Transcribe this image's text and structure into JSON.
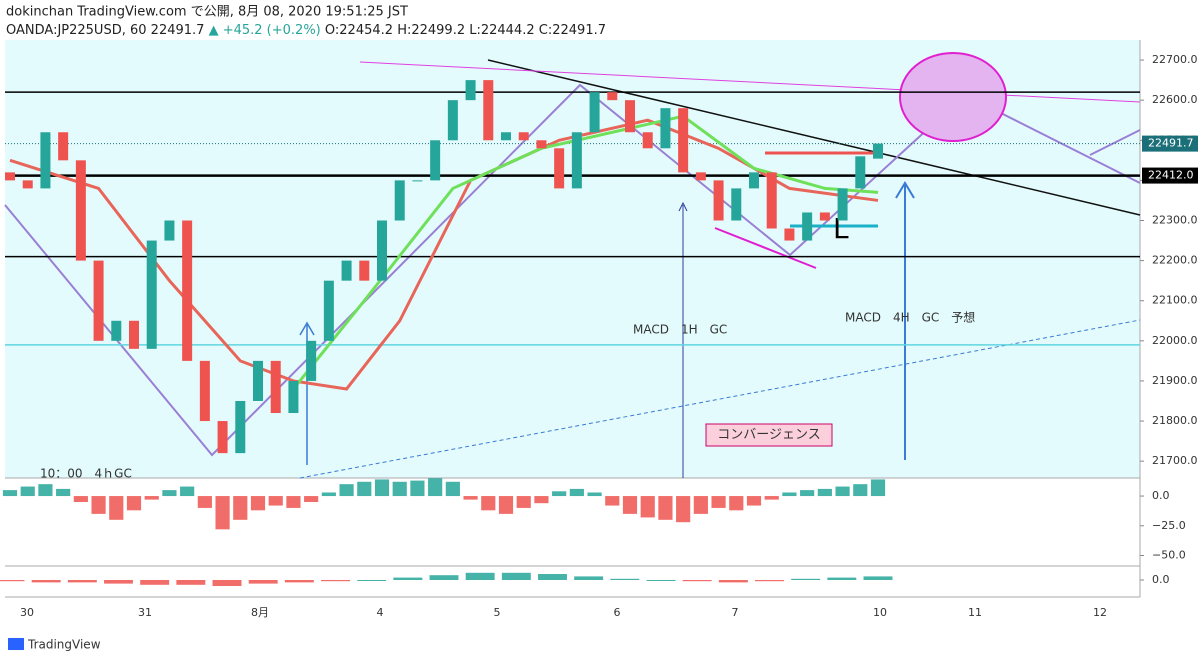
{
  "header": {
    "publisher": "dokinchan TradingView.com で公開, 8月 08, 2020 19:51:25 JST",
    "symbol": "OANDA:JP225USD, 60",
    "last": "22491.7",
    "change": "▲ +45.2 (+0.2%)",
    "open": "O:22454.2",
    "high": "H:22499.2",
    "low": "L:22444.2",
    "close": "C:22491.7"
  },
  "footer": {
    "brand": "TradingView"
  },
  "chart_data": {
    "type": "candlestick",
    "open": [
      22420,
      22400,
      22380,
      22520,
      22450,
      22200,
      22000,
      22050,
      21980,
      22250,
      22300,
      21950,
      21800,
      21720,
      21850,
      21950,
      21820,
      21900,
      22000,
      22150,
      22200,
      22150,
      22300,
      22400,
      22400,
      22500,
      22600,
      22650,
      22500,
      22520,
      22500,
      22480,
      22380,
      22520,
      22620,
      22600,
      22520,
      22480,
      22580,
      22420,
      22400,
      22300,
      22380,
      22420,
      22280,
      22250,
      22320,
      22300,
      22380,
      22454.2
    ],
    "close": [
      22400,
      22380,
      22520,
      22450,
      22200,
      22000,
      22050,
      21980,
      22250,
      22300,
      21950,
      21800,
      21720,
      21850,
      21950,
      21820,
      21900,
      22000,
      22150,
      22200,
      22150,
      22300,
      22400,
      22400,
      22500,
      22600,
      22650,
      22500,
      22520,
      22500,
      22480,
      22380,
      22520,
      22620,
      22600,
      22520,
      22480,
      22580,
      22420,
      22400,
      22300,
      22380,
      22420,
      22280,
      22250,
      22320,
      22300,
      22380,
      22460,
      22491.7
    ],
    "up_color": "#26a69a",
    "down_color": "#ef5350",
    "categories": [
      "30",
      "31",
      "8月",
      "4",
      "5",
      "6",
      "7",
      "10",
      "11",
      "12"
    ],
    "ylim": [
      21658,
      22750
    ],
    "yticks": [
      {
        "value": 22700,
        "label": "22700.0"
      },
      {
        "value": 22600,
        "label": "22600.0"
      },
      {
        "value": 22500,
        "label": "22500.0"
      },
      {
        "value": 22400,
        "label": "22400.0"
      },
      {
        "value": 22300,
        "label": "22300.0"
      },
      {
        "value": 22200,
        "label": "22200.0"
      },
      {
        "value": 22100,
        "label": "22100.0"
      },
      {
        "value": 22000,
        "label": "22000.0"
      },
      {
        "value": 21900,
        "label": "21900.0"
      },
      {
        "value": 21800,
        "label": "21800.0"
      },
      {
        "value": 21700,
        "label": "21700.0"
      }
    ],
    "moving_averages": [
      {
        "color": "#e8655a",
        "x": [
          0,
          5,
          9,
          13,
          16,
          19,
          22,
          26,
          31,
          36,
          40,
          44,
          49
        ],
        "values": [
          22450,
          22380,
          22150,
          21950,
          21900,
          21880,
          22050,
          22400,
          22500,
          22550,
          22480,
          22380,
          22350
        ]
      },
      {
        "color": "#6fe05a",
        "x": [
          16,
          20,
          25,
          30,
          35,
          38,
          42,
          46,
          49
        ],
        "values": [
          21880,
          22100,
          22380,
          22480,
          22530,
          22560,
          22430,
          22380,
          22370
        ]
      }
    ],
    "levels": [
      {
        "value": 22620,
        "color": "#000000"
      },
      {
        "value": 22412.0,
        "label": "22412.0",
        "color": "#000000"
      },
      {
        "value": 22210,
        "color": "#000000"
      },
      {
        "value": 21990,
        "color": "#5fd6e0"
      }
    ],
    "last_price": {
      "value": 22491.7,
      "label": "22491.7"
    },
    "annotations": [
      "MACD　1H　GC",
      "MACD　4H　GC　予想",
      "コンバージェンス",
      "L",
      "10：00　4ｈGC"
    ],
    "macd": {
      "ylim": [
        -58,
        13.5
      ],
      "yticks": [
        {
          "value": 0,
          "label": "0.0"
        },
        {
          "value": -25,
          "label": "−25.0"
        },
        {
          "value": -50,
          "label": "−50.0"
        }
      ],
      "values": [
        5,
        8,
        10,
        6,
        -5,
        -15,
        -20,
        -12,
        -3,
        5,
        8,
        -10,
        -28,
        -20,
        -12,
        -8,
        -10,
        -5,
        3,
        10,
        12,
        14,
        12,
        13,
        15,
        12,
        -3,
        -12,
        -15,
        -10,
        -6,
        4,
        6,
        3,
        -8,
        -15,
        -18,
        -20,
        -22,
        -15,
        -10,
        -12,
        -8,
        -3,
        3,
        5,
        6,
        8,
        10,
        14
      ]
    },
    "oscillator": {
      "ylim": [
        -10,
        10
      ],
      "yticks": [
        {
          "value": 0,
          "label": "0.0"
        }
      ],
      "values": [
        -1,
        -2,
        -2,
        -3,
        -4,
        -4,
        -5,
        -3,
        -2,
        -1,
        0,
        2,
        4,
        6,
        6,
        5,
        3,
        1,
        0,
        -1,
        -2,
        -1,
        1,
        2,
        3
      ]
    }
  }
}
